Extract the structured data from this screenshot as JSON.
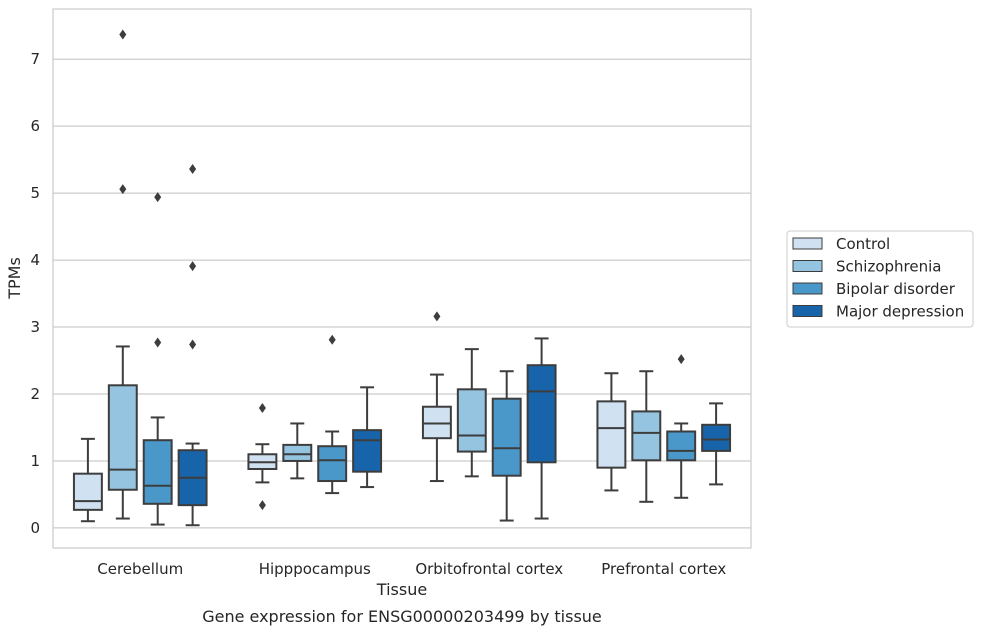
{
  "chart_data": {
    "type": "box",
    "caption": "Gene expression for ENSG00000203499 by tissue",
    "xlabel": "Tissue",
    "ylabel": "TPMs",
    "ylim": [
      -0.3,
      7.75
    ],
    "yticks": [
      0,
      1,
      2,
      3,
      4,
      5,
      6,
      7
    ],
    "grid": "horizontal",
    "legend_position": "right",
    "categories": [
      "Cerebellum",
      "Hipppocampus",
      "Orbitofrontal cortex",
      "Prefrontal cortex"
    ],
    "series": [
      {
        "name": "Control",
        "color": "#d0e1f2",
        "boxes": [
          {
            "whislo": 0.1,
            "q1": 0.27,
            "med": 0.4,
            "q3": 0.81,
            "whishi": 1.33,
            "fliers": []
          },
          {
            "whislo": 0.68,
            "q1": 0.88,
            "med": 0.98,
            "q3": 1.1,
            "whishi": 1.25,
            "fliers": [
              1.79,
              0.34
            ]
          },
          {
            "whislo": 0.7,
            "q1": 1.34,
            "med": 1.56,
            "q3": 1.81,
            "whishi": 2.29,
            "fliers": [
              3.16
            ]
          },
          {
            "whislo": 0.56,
            "q1": 0.9,
            "med": 1.49,
            "q3": 1.89,
            "whishi": 2.31,
            "fliers": []
          }
        ]
      },
      {
        "name": "Schizophrenia",
        "color": "#94c4df",
        "boxes": [
          {
            "whislo": 0.14,
            "q1": 0.57,
            "med": 0.87,
            "q3": 2.13,
            "whishi": 2.71,
            "fliers": [
              7.37,
              5.06
            ]
          },
          {
            "whislo": 0.74,
            "q1": 1.0,
            "med": 1.1,
            "q3": 1.24,
            "whishi": 1.56,
            "fliers": []
          },
          {
            "whislo": 0.77,
            "q1": 1.14,
            "med": 1.38,
            "q3": 2.07,
            "whishi": 2.67,
            "fliers": []
          },
          {
            "whislo": 0.39,
            "q1": 1.01,
            "med": 1.42,
            "q3": 1.74,
            "whishi": 2.34,
            "fliers": []
          }
        ]
      },
      {
        "name": "Bipolar disorder",
        "color": "#4a98c9",
        "boxes": [
          {
            "whislo": 0.05,
            "q1": 0.36,
            "med": 0.63,
            "q3": 1.31,
            "whishi": 1.65,
            "fliers": [
              4.94,
              2.77
            ]
          },
          {
            "whislo": 0.52,
            "q1": 0.7,
            "med": 1.01,
            "q3": 1.22,
            "whishi": 1.44,
            "fliers": [
              2.81
            ]
          },
          {
            "whislo": 0.11,
            "q1": 0.78,
            "med": 1.19,
            "q3": 1.93,
            "whishi": 2.34,
            "fliers": []
          },
          {
            "whislo": 0.45,
            "q1": 1.01,
            "med": 1.15,
            "q3": 1.44,
            "whishi": 1.56,
            "fliers": [
              2.52
            ]
          }
        ]
      },
      {
        "name": "Major depression",
        "color": "#1764ab",
        "boxes": [
          {
            "whislo": 0.04,
            "q1": 0.34,
            "med": 0.75,
            "q3": 1.16,
            "whishi": 1.26,
            "fliers": [
              5.36,
              3.91,
              2.74
            ]
          },
          {
            "whislo": 0.61,
            "q1": 0.84,
            "med": 1.31,
            "q3": 1.46,
            "whishi": 2.1,
            "fliers": []
          },
          {
            "whislo": 0.14,
            "q1": 0.98,
            "med": 2.04,
            "q3": 2.43,
            "whishi": 2.83,
            "fliers": []
          },
          {
            "whislo": 0.65,
            "q1": 1.15,
            "med": 1.32,
            "q3": 1.54,
            "whishi": 1.86,
            "fliers": []
          }
        ]
      }
    ]
  }
}
